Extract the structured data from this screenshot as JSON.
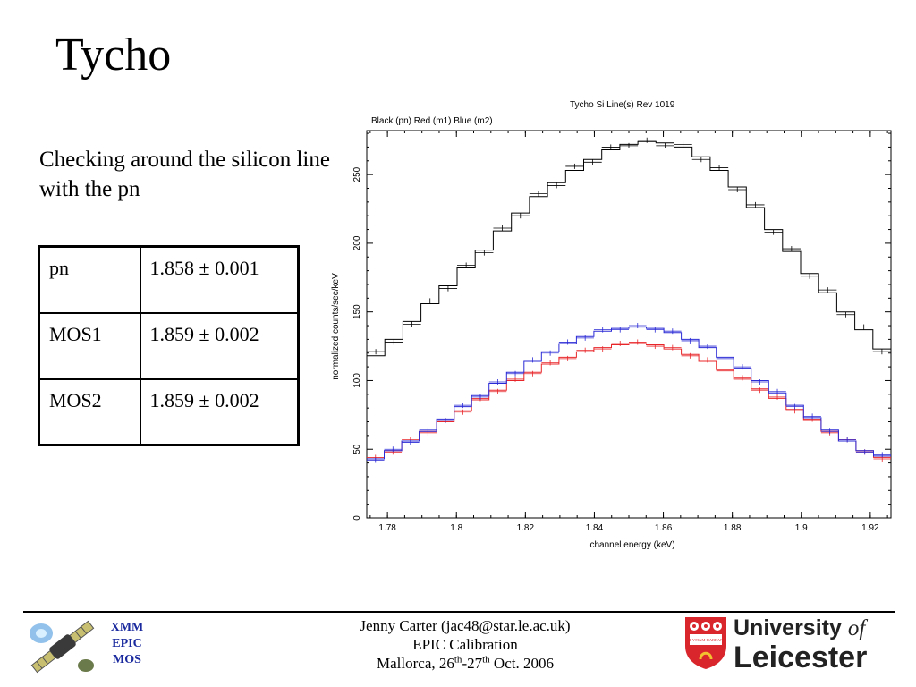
{
  "slide": {
    "title": "Tycho",
    "intro": "Checking around the silicon line with the pn"
  },
  "table": {
    "rows": [
      {
        "label": "pn",
        "value": "1.858 ± 0.001"
      },
      {
        "label": "MOS1",
        "value": "1.859 ± 0.002"
      },
      {
        "label": "MOS2",
        "value": "1.859 ± 0.002"
      }
    ]
  },
  "chart_data": {
    "type": "line",
    "title": "Tycho  Si Line(s)  Rev 1019",
    "subtitle": "Black (pn)  Red (m1)  Blue (m2)",
    "xlabel": "channel energy (keV)",
    "ylabel": "normalized counts/sec/keV",
    "xlim": [
      1.774,
      1.926
    ],
    "ylim": [
      0,
      282
    ],
    "xticks": [
      "1.78",
      "1.8",
      "1.82",
      "1.84",
      "1.86",
      "1.88",
      "1.9",
      "1.92"
    ],
    "xtick_values": [
      1.78,
      1.8,
      1.82,
      1.84,
      1.86,
      1.88,
      1.9,
      1.92
    ],
    "yticks": [
      "0",
      "50",
      "100",
      "150",
      "200",
      "250"
    ],
    "ytick_values": [
      0,
      50,
      100,
      150,
      200,
      250
    ],
    "bin_edges": [
      1.774,
      1.782,
      1.79,
      1.798,
      1.806,
      1.814,
      1.822,
      1.83,
      1.838,
      1.846,
      1.854,
      1.862,
      1.87,
      1.878,
      1.886,
      1.894,
      1.902,
      1.91,
      1.918,
      1.926
    ],
    "series": [
      {
        "name": "Black (pn)",
        "color": "#000000",
        "model": [
          118,
          130,
          143,
          156,
          169,
          182,
          195,
          209,
          222,
          234,
          244,
          253,
          261,
          268,
          272,
          274,
          273,
          270,
          263,
          253,
          241,
          226,
          210,
          194,
          178,
          164,
          150,
          137,
          123
        ],
        "data": [
          121,
          128,
          141,
          158,
          167,
          184,
          193,
          211,
          220,
          236,
          242,
          256,
          259,
          270,
          271,
          275,
          271,
          272,
          261,
          255,
          239,
          228,
          208,
          196,
          176,
          166,
          148,
          139,
          121
        ]
      },
      {
        "name": "Red (m1)",
        "color": "#e8262a",
        "model": [
          43,
          49,
          56,
          63,
          70,
          78,
          86,
          93,
          100,
          106,
          112,
          117,
          121,
          124,
          126,
          127,
          126,
          123,
          119,
          114,
          108,
          101,
          94,
          87,
          79,
          71,
          63,
          56,
          49,
          44
        ],
        "data": [
          44,
          48,
          57,
          62,
          71,
          77,
          87,
          92,
          101,
          105,
          113,
          116,
          122,
          123,
          127,
          128,
          125,
          124,
          118,
          115,
          107,
          102,
          93,
          88,
          78,
          72,
          62,
          57,
          48,
          43
        ]
      },
      {
        "name": "Blue (m2)",
        "color": "#2a2ad6",
        "model": [
          43,
          49,
          56,
          63,
          72,
          81,
          89,
          98,
          106,
          114,
          121,
          127,
          132,
          136,
          138,
          139,
          138,
          135,
          130,
          124,
          117,
          109,
          100,
          91,
          82,
          73,
          64,
          56,
          49,
          45
        ],
        "data": [
          42,
          50,
          55,
          64,
          71,
          82,
          88,
          99,
          105,
          115,
          120,
          128,
          131,
          137,
          137,
          140,
          137,
          136,
          129,
          125,
          116,
          110,
          99,
          92,
          81,
          74,
          63,
          57,
          48,
          46
        ]
      }
    ]
  },
  "footer": {
    "xmm_line1": "XMM",
    "xmm_line2": "EPIC",
    "xmm_line3": "MOS",
    "line1": "Jenny Carter (jac48@star.le.ac.uk)",
    "line2": "EPIC Calibration",
    "line3_prefix": "Mallorca, 26",
    "line3_sup1": "th",
    "line3_mid": "-27",
    "line3_sup2": "th",
    "line3_suffix": " Oct. 2006",
    "university_line1": "University",
    "university_of": "of",
    "university_line2": "Leicester",
    "crest_motto": "UT VITAM HABEANT"
  }
}
